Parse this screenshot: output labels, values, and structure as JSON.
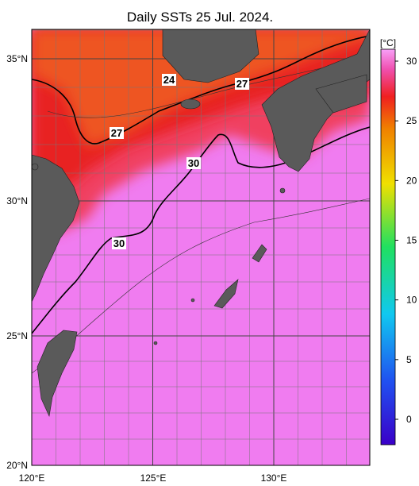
{
  "header": {
    "title": "Daily SSTs 25 Jul. 2024."
  },
  "map": {
    "lon_labels": [
      "120°E",
      "125°E",
      "130°E"
    ],
    "lat_labels": [
      "35°N",
      "30°N",
      "25°N",
      "20°N"
    ],
    "contour_labels": [
      "24",
      "27",
      "27",
      "30",
      "30"
    ]
  },
  "colorbar": {
    "unit": "[°C]",
    "ticks": [
      30,
      25,
      20,
      15,
      10,
      5,
      0
    ]
  }
}
